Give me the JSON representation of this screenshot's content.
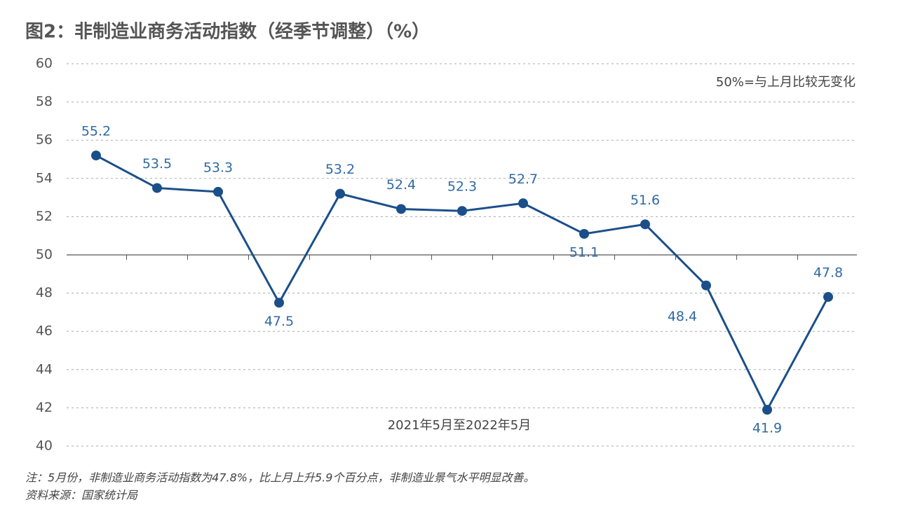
{
  "chart_data": {
    "type": "line",
    "title": "图2：非制造业商务活动指数（经季节调整）（%）",
    "annotation": "50%=与上月比较无变化",
    "x_label": "2021年5月至2022年5月",
    "categories": [
      null,
      null,
      null,
      null,
      null,
      null,
      null,
      null,
      null,
      null,
      null,
      null,
      null
    ],
    "series": [
      {
        "name": "非制造业商务活动指数",
        "color": "#1b4f8a",
        "values": [
          55.2,
          53.5,
          53.3,
          47.5,
          53.2,
          52.4,
          52.3,
          52.7,
          51.1,
          51.6,
          48.4,
          41.9,
          47.8
        ],
        "label_positions": [
          "above",
          "above",
          "above",
          "below",
          "above",
          "above",
          "above",
          "above",
          "below",
          "above",
          "below-left",
          "below",
          "above"
        ]
      }
    ],
    "ylim": [
      40,
      60
    ],
    "yticks": [
      40,
      42,
      44,
      46,
      48,
      50,
      52,
      54,
      56,
      58,
      60
    ],
    "grid": true,
    "baseline": 50,
    "notes": [
      "注：5月份，非制造业商务活动指数为47.8%，比上月上升5.9个百分点，非制造业景气水平明显改善。",
      "资料来源：国家统计局"
    ]
  }
}
